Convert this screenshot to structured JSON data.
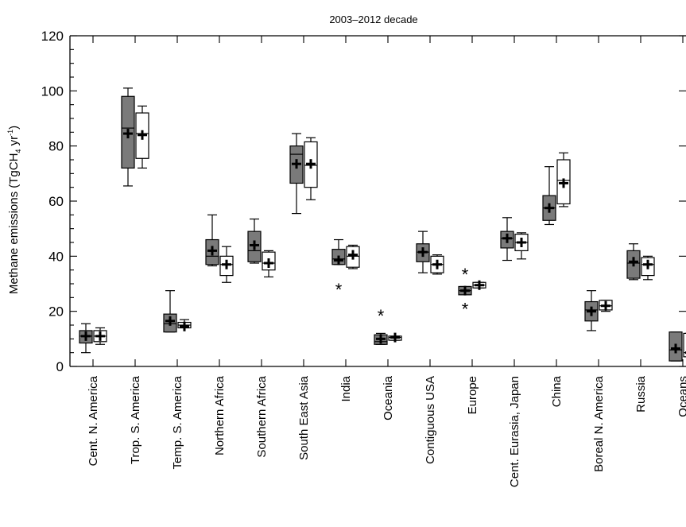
{
  "chart_data": {
    "type": "boxplot",
    "title": "2003–2012 decade",
    "xlabel": "",
    "ylabel": "Methane emissions (TgCH₄ yr⁻¹)",
    "ylabel_parts": {
      "main": "Methane emissions (TgCH",
      "sub": "4",
      "mid": " yr",
      "sup": "-1",
      "end": ")"
    },
    "ylim": [
      0,
      120
    ],
    "yticks": [
      0,
      20,
      40,
      60,
      80,
      100,
      120
    ],
    "grid": false,
    "colors": {
      "series_a": "#7a7a7a",
      "series_b": "#ffffff",
      "stroke": "#000000"
    },
    "categories": [
      "Cent. N. America",
      "Trop. S. America",
      "Temp. S. America",
      "Northern Africa",
      "Southern Africa",
      "South East Asia",
      "India",
      "Oceania",
      "Contiguous USA",
      "Europe",
      "Cent. Eurasia, Japan",
      "China",
      "Boreal N. America",
      "Russia",
      "Oceans"
    ],
    "series": [
      {
        "boxes": [
          {
            "min": 5,
            "q1": 8.5,
            "median": 11,
            "q3": 13,
            "max": 15.5,
            "mean": 11,
            "outliers": []
          },
          {
            "min": 65.5,
            "q1": 72,
            "median": 86.5,
            "q3": 98,
            "max": 101,
            "mean": 84.5,
            "outliers": []
          },
          {
            "min": 12.5,
            "q1": 12.5,
            "median": 15.5,
            "q3": 19,
            "max": 27.5,
            "mean": 16.5,
            "outliers": []
          },
          {
            "min": 36.5,
            "q1": 37,
            "median": 40,
            "q3": 46,
            "max": 55,
            "mean": 42,
            "outliers": []
          },
          {
            "min": 37.5,
            "q1": 38,
            "median": 42,
            "q3": 49,
            "max": 53.5,
            "mean": 44,
            "outliers": []
          },
          {
            "min": 55.5,
            "q1": 66.5,
            "median": 77,
            "q3": 80,
            "max": 84.5,
            "mean": 73.5,
            "outliers": []
          },
          {
            "min": 37,
            "q1": 37,
            "median": 39,
            "q3": 42.5,
            "max": 46,
            "mean": 38.5,
            "outliers": [
              28.5
            ]
          },
          {
            "min": 8,
            "q1": 8,
            "median": 9,
            "q3": 11.5,
            "max": 12,
            "mean": 10,
            "outliers": [
              19
            ]
          },
          {
            "min": 34,
            "q1": 38,
            "median": 41.5,
            "q3": 44.5,
            "max": 49,
            "mean": 41.5,
            "outliers": []
          },
          {
            "min": 26,
            "q1": 26,
            "median": 27.5,
            "q3": 29,
            "max": 29,
            "mean": 27.5,
            "outliers": [
              21.5,
              34
            ]
          },
          {
            "min": 38.5,
            "q1": 43,
            "median": 46.5,
            "q3": 49,
            "max": 54,
            "mean": 46.5,
            "outliers": []
          },
          {
            "min": 51.5,
            "q1": 53,
            "median": 57.5,
            "q3": 62,
            "max": 72.5,
            "mean": 57.5,
            "outliers": []
          },
          {
            "min": 13,
            "q1": 16.5,
            "median": 20.5,
            "q3": 23.5,
            "max": 27.5,
            "mean": 20,
            "outliers": []
          },
          {
            "min": 31.5,
            "q1": 32,
            "median": 37.5,
            "q3": 42,
            "max": 44.5,
            "mean": 38,
            "outliers": []
          },
          {
            "min": 2,
            "q1": 2,
            "median": 6,
            "q3": 12.5,
            "max": 12.5,
            "mean": 6.5,
            "outliers": []
          }
        ]
      },
      {
        "boxes": [
          {
            "min": 8,
            "q1": 9,
            "median": 11,
            "q3": 13,
            "max": 14,
            "mean": 11,
            "outliers": []
          },
          {
            "min": 72,
            "q1": 75.5,
            "median": 84.5,
            "q3": 92,
            "max": 94.5,
            "mean": 84,
            "outliers": []
          },
          {
            "min": 14,
            "q1": 14,
            "median": 15,
            "q3": 16,
            "max": 17,
            "mean": 14.5,
            "outliers": []
          },
          {
            "min": 30.5,
            "q1": 33,
            "median": 37,
            "q3": 40,
            "max": 43.5,
            "mean": 37,
            "outliers": []
          },
          {
            "min": 32.5,
            "q1": 35,
            "median": 37.5,
            "q3": 41.5,
            "max": 42,
            "mean": 37.5,
            "outliers": []
          },
          {
            "min": 60.5,
            "q1": 65,
            "median": 73,
            "q3": 81.5,
            "max": 83,
            "mean": 73.5,
            "outliers": []
          },
          {
            "min": 35.5,
            "q1": 36,
            "median": 40,
            "q3": 43.5,
            "max": 44,
            "mean": 40.5,
            "outliers": []
          },
          {
            "min": 9.5,
            "q1": 9.5,
            "median": 10.5,
            "q3": 11,
            "max": 11,
            "mean": 10.5,
            "outliers": []
          },
          {
            "min": 33.5,
            "q1": 34,
            "median": 37,
            "q3": 40,
            "max": 40.5,
            "mean": 37,
            "outliers": []
          },
          {
            "min": 28.5,
            "q1": 28.5,
            "median": 29.5,
            "q3": 30.5,
            "max": 30.5,
            "mean": 29.5,
            "outliers": []
          },
          {
            "min": 39,
            "q1": 42,
            "median": 45,
            "q3": 48,
            "max": 48.5,
            "mean": 45,
            "outliers": []
          },
          {
            "min": 58,
            "q1": 59,
            "median": 67.5,
            "q3": 75,
            "max": 77.5,
            "mean": 66.5,
            "outliers": []
          },
          {
            "min": 20,
            "q1": 20.5,
            "median": 22,
            "q3": 24,
            "max": 24,
            "mean": 22,
            "outliers": []
          },
          {
            "min": 31.5,
            "q1": 33,
            "median": 37,
            "q3": 39.5,
            "max": 40,
            "mean": 37,
            "outliers": []
          },
          {
            "min": 3.5,
            "q1": 3.5,
            "median": 5,
            "q3": 12,
            "max": 12,
            "mean": 5,
            "outliers": []
          }
        ]
      }
    ]
  }
}
